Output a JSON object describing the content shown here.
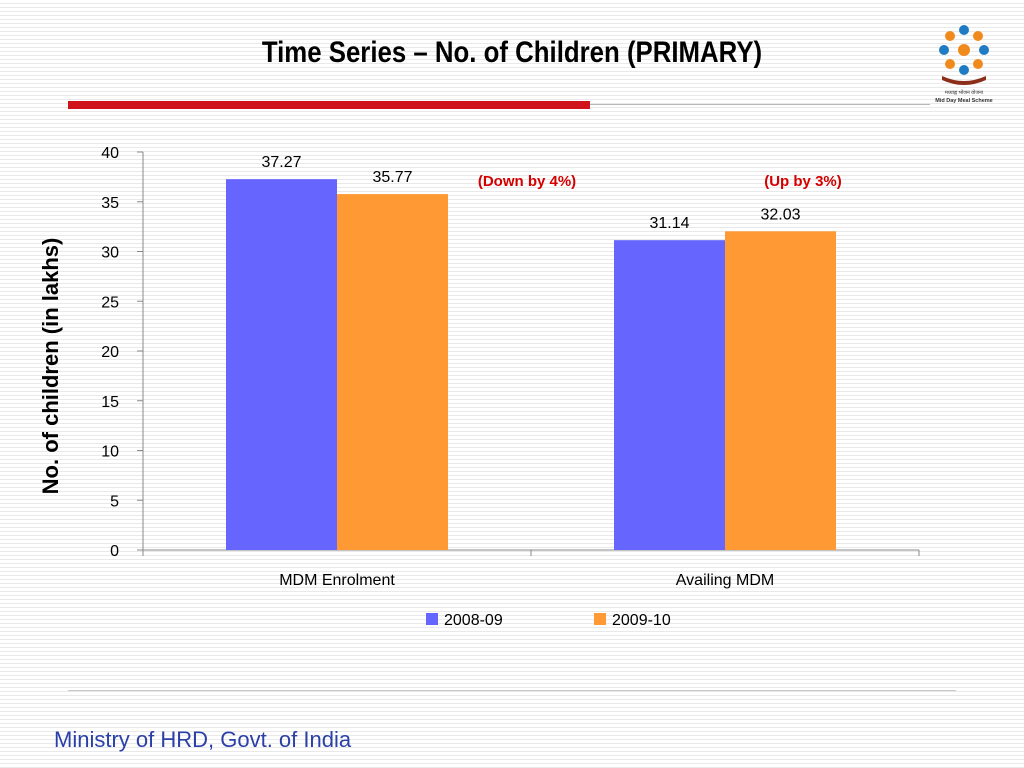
{
  "slide": {
    "title": "Time Series – No. of Children (PRIMARY)",
    "footer": "Ministry of HRD, Govt. of India",
    "logo_caption": "Mid Day Meal Scheme"
  },
  "chart_data": {
    "type": "bar",
    "categories": [
      "MDM Enrolment",
      "Availing MDM"
    ],
    "series": [
      {
        "name": "2008-09",
        "values": [
          37.27,
          31.14
        ],
        "color": "#6666ff"
      },
      {
        "name": "2009-10",
        "values": [
          35.77,
          32.03
        ],
        "color": "#ff9933"
      }
    ],
    "data_labels": [
      [
        "37.27",
        "31.14"
      ],
      [
        "35.77",
        "32.03"
      ]
    ],
    "title": "",
    "xlabel": "",
    "ylabel": "No. of children (in lakhs)",
    "ylim": [
      0,
      40
    ],
    "yticks": [
      "0",
      "5",
      "10",
      "15",
      "20",
      "25",
      "30",
      "35",
      "40"
    ],
    "grid": false,
    "legend_position": "bottom",
    "annotations": [
      "(Down by 4%)",
      "(Up by 3%)"
    ]
  }
}
